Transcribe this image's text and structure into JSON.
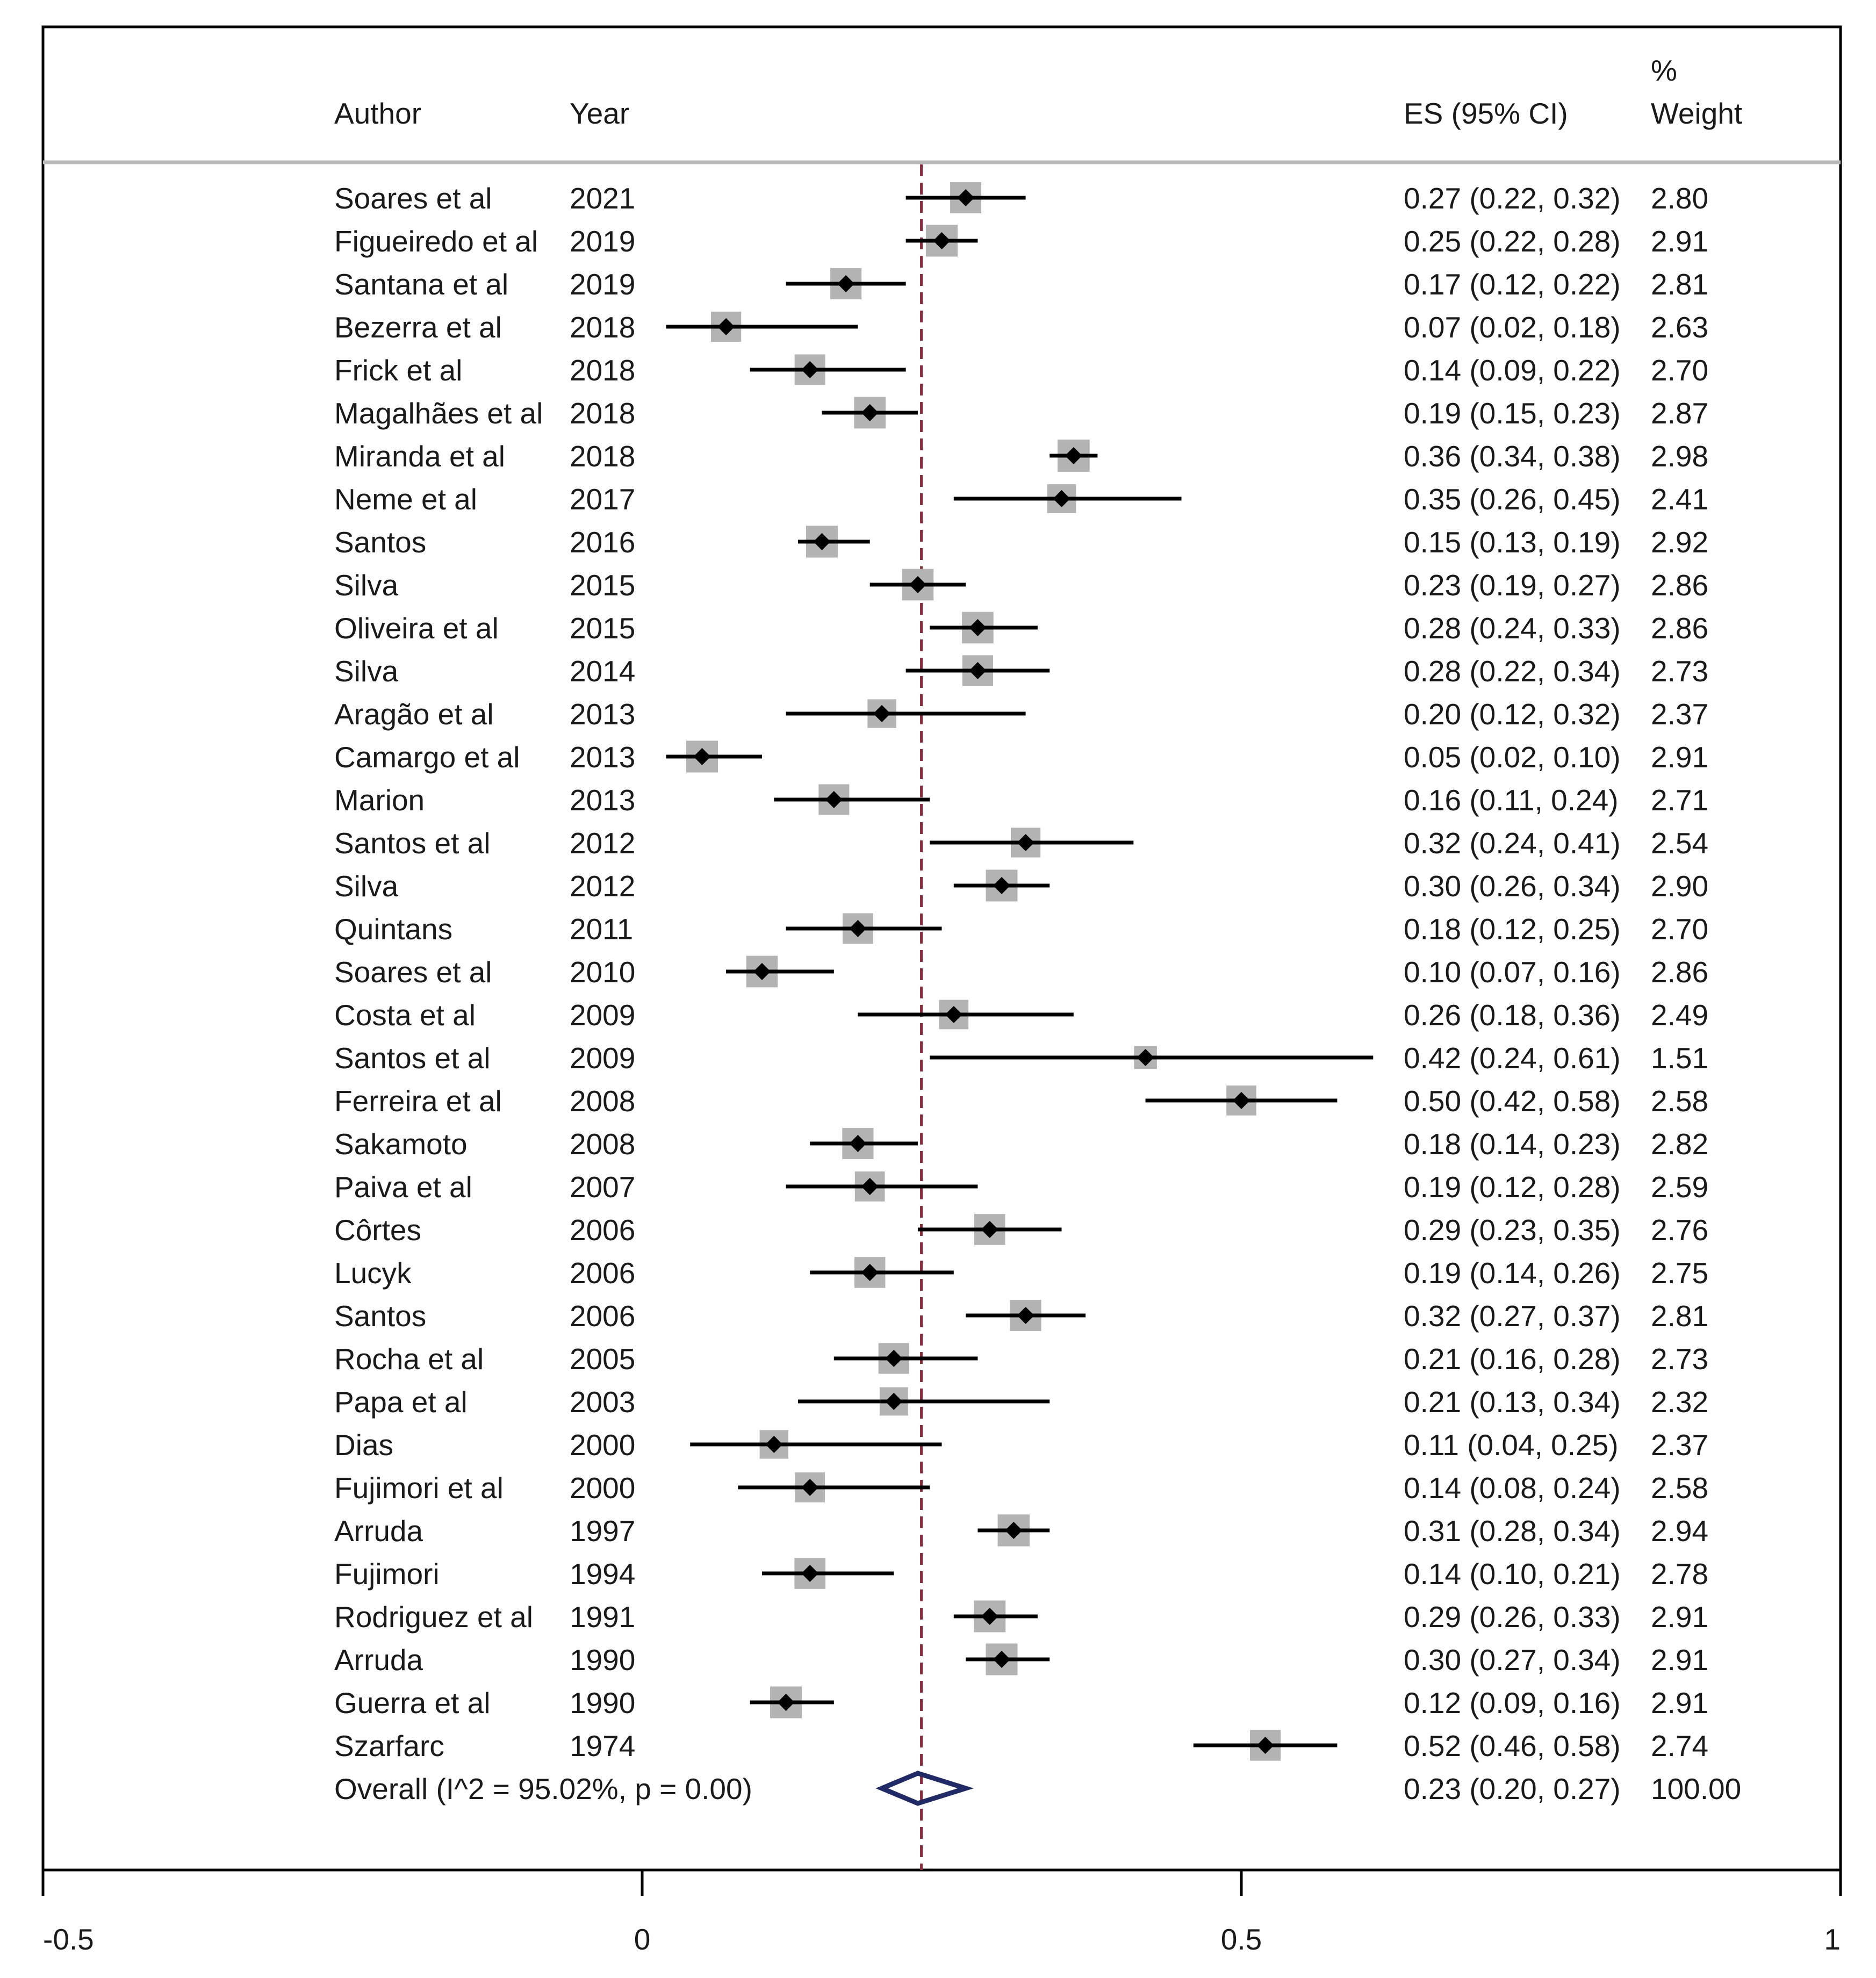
{
  "chart_data": {
    "type": "forest",
    "title": "",
    "headers": {
      "author": "Author",
      "year": "Year",
      "es": "ES (95% CI)",
      "weight_line1": "%",
      "weight_line2": "Weight"
    },
    "x_axis": {
      "xlim": [
        -0.5,
        1
      ],
      "ticks": [
        -0.5,
        0,
        0.5,
        1
      ],
      "tick_labels": [
        "-0.5",
        "0",
        "0.5",
        "1"
      ]
    },
    "reference_line": 0.233,
    "studies": [
      {
        "author": "Soares et al",
        "year": "2021",
        "es": 0.27,
        "lo": 0.22,
        "hi": 0.32,
        "weight": 2.8,
        "es_text": "0.27 (0.22, 0.32)",
        "weight_text": "2.80"
      },
      {
        "author": "Figueiredo et al",
        "year": "2019",
        "es": 0.25,
        "lo": 0.22,
        "hi": 0.28,
        "weight": 2.91,
        "es_text": "0.25 (0.22, 0.28)",
        "weight_text": "2.91"
      },
      {
        "author": "Santana et al",
        "year": "2019",
        "es": 0.17,
        "lo": 0.12,
        "hi": 0.22,
        "weight": 2.81,
        "es_text": "0.17 (0.12, 0.22)",
        "weight_text": "2.81"
      },
      {
        "author": "Bezerra et al",
        "year": "2018",
        "es": 0.07,
        "lo": 0.02,
        "hi": 0.18,
        "weight": 2.63,
        "es_text": "0.07 (0.02, 0.18)",
        "weight_text": "2.63"
      },
      {
        "author": "Frick et al",
        "year": "2018",
        "es": 0.14,
        "lo": 0.09,
        "hi": 0.22,
        "weight": 2.7,
        "es_text": "0.14 (0.09, 0.22)",
        "weight_text": "2.70"
      },
      {
        "author": "Magalhães et al",
        "year": "2018",
        "es": 0.19,
        "lo": 0.15,
        "hi": 0.23,
        "weight": 2.87,
        "es_text": "0.19 (0.15, 0.23)",
        "weight_text": "2.87"
      },
      {
        "author": "Miranda et al",
        "year": "2018",
        "es": 0.36,
        "lo": 0.34,
        "hi": 0.38,
        "weight": 2.98,
        "es_text": "0.36 (0.34, 0.38)",
        "weight_text": "2.98"
      },
      {
        "author": "Neme et al",
        "year": "2017",
        "es": 0.35,
        "lo": 0.26,
        "hi": 0.45,
        "weight": 2.41,
        "es_text": "0.35 (0.26, 0.45)",
        "weight_text": "2.41"
      },
      {
        "author": "Santos",
        "year": "2016",
        "es": 0.15,
        "lo": 0.13,
        "hi": 0.19,
        "weight": 2.92,
        "es_text": "0.15 (0.13, 0.19)",
        "weight_text": "2.92"
      },
      {
        "author": "Silva",
        "year": "2015",
        "es": 0.23,
        "lo": 0.19,
        "hi": 0.27,
        "weight": 2.86,
        "es_text": "0.23 (0.19, 0.27)",
        "weight_text": "2.86"
      },
      {
        "author": "Oliveira et al",
        "year": "2015",
        "es": 0.28,
        "lo": 0.24,
        "hi": 0.33,
        "weight": 2.86,
        "es_text": "0.28 (0.24, 0.33)",
        "weight_text": "2.86"
      },
      {
        "author": "Silva",
        "year": "2014",
        "es": 0.28,
        "lo": 0.22,
        "hi": 0.34,
        "weight": 2.73,
        "es_text": "0.28 (0.22, 0.34)",
        "weight_text": "2.73"
      },
      {
        "author": "Aragão et al",
        "year": "2013",
        "es": 0.2,
        "lo": 0.12,
        "hi": 0.32,
        "weight": 2.37,
        "es_text": "0.20 (0.12, 0.32)",
        "weight_text": "2.37"
      },
      {
        "author": "Camargo et al",
        "year": "2013",
        "es": 0.05,
        "lo": 0.02,
        "hi": 0.1,
        "weight": 2.91,
        "es_text": "0.05 (0.02, 0.10)",
        "weight_text": "2.91"
      },
      {
        "author": "Marion",
        "year": "2013",
        "es": 0.16,
        "lo": 0.11,
        "hi": 0.24,
        "weight": 2.71,
        "es_text": "0.16 (0.11, 0.24)",
        "weight_text": "2.71"
      },
      {
        "author": "Santos et al",
        "year": "2012",
        "es": 0.32,
        "lo": 0.24,
        "hi": 0.41,
        "weight": 2.54,
        "es_text": "0.32 (0.24, 0.41)",
        "weight_text": "2.54"
      },
      {
        "author": "Silva",
        "year": "2012",
        "es": 0.3,
        "lo": 0.26,
        "hi": 0.34,
        "weight": 2.9,
        "es_text": "0.30 (0.26, 0.34)",
        "weight_text": "2.90"
      },
      {
        "author": "Quintans",
        "year": "2011",
        "es": 0.18,
        "lo": 0.12,
        "hi": 0.25,
        "weight": 2.7,
        "es_text": "0.18 (0.12, 0.25)",
        "weight_text": "2.70"
      },
      {
        "author": "Soares et al",
        "year": "2010",
        "es": 0.1,
        "lo": 0.07,
        "hi": 0.16,
        "weight": 2.86,
        "es_text": "0.10 (0.07, 0.16)",
        "weight_text": "2.86"
      },
      {
        "author": "Costa et al",
        "year": "2009",
        "es": 0.26,
        "lo": 0.18,
        "hi": 0.36,
        "weight": 2.49,
        "es_text": "0.26 (0.18, 0.36)",
        "weight_text": "2.49"
      },
      {
        "author": "Santos et al",
        "year": "2009",
        "es": 0.42,
        "lo": 0.24,
        "hi": 0.61,
        "weight": 1.51,
        "es_text": "0.42 (0.24, 0.61)",
        "weight_text": "1.51"
      },
      {
        "author": "Ferreira et al",
        "year": "2008",
        "es": 0.5,
        "lo": 0.42,
        "hi": 0.58,
        "weight": 2.58,
        "es_text": "0.50 (0.42, 0.58)",
        "weight_text": "2.58"
      },
      {
        "author": "Sakamoto",
        "year": "2008",
        "es": 0.18,
        "lo": 0.14,
        "hi": 0.23,
        "weight": 2.82,
        "es_text": "0.18 (0.14, 0.23)",
        "weight_text": "2.82"
      },
      {
        "author": "Paiva et al",
        "year": "2007",
        "es": 0.19,
        "lo": 0.12,
        "hi": 0.28,
        "weight": 2.59,
        "es_text": "0.19 (0.12, 0.28)",
        "weight_text": "2.59"
      },
      {
        "author": "Côrtes",
        "year": "2006",
        "es": 0.29,
        "lo": 0.23,
        "hi": 0.35,
        "weight": 2.76,
        "es_text": "0.29 (0.23, 0.35)",
        "weight_text": "2.76"
      },
      {
        "author": "Lucyk",
        "year": "2006",
        "es": 0.19,
        "lo": 0.14,
        "hi": 0.26,
        "weight": 2.75,
        "es_text": "0.19 (0.14, 0.26)",
        "weight_text": "2.75"
      },
      {
        "author": "Santos",
        "year": "2006",
        "es": 0.32,
        "lo": 0.27,
        "hi": 0.37,
        "weight": 2.81,
        "es_text": "0.32 (0.27, 0.37)",
        "weight_text": "2.81"
      },
      {
        "author": "Rocha et al",
        "year": "2005",
        "es": 0.21,
        "lo": 0.16,
        "hi": 0.28,
        "weight": 2.73,
        "es_text": "0.21 (0.16, 0.28)",
        "weight_text": "2.73"
      },
      {
        "author": "Papa et al",
        "year": "2003",
        "es": 0.21,
        "lo": 0.13,
        "hi": 0.34,
        "weight": 2.32,
        "es_text": "0.21 (0.13, 0.34)",
        "weight_text": "2.32"
      },
      {
        "author": "Dias",
        "year": "2000",
        "es": 0.11,
        "lo": 0.04,
        "hi": 0.25,
        "weight": 2.37,
        "es_text": "0.11 (0.04, 0.25)",
        "weight_text": "2.37"
      },
      {
        "author": "Fujimori et al",
        "year": "2000",
        "es": 0.14,
        "lo": 0.08,
        "hi": 0.24,
        "weight": 2.58,
        "es_text": "0.14 (0.08, 0.24)",
        "weight_text": "2.58"
      },
      {
        "author": "Arruda",
        "year": "1997",
        "es": 0.31,
        "lo": 0.28,
        "hi": 0.34,
        "weight": 2.94,
        "es_text": "0.31 (0.28, 0.34)",
        "weight_text": "2.94"
      },
      {
        "author": "Fujimori",
        "year": "1994",
        "es": 0.14,
        "lo": 0.1,
        "hi": 0.21,
        "weight": 2.78,
        "es_text": "0.14 (0.10, 0.21)",
        "weight_text": "2.78"
      },
      {
        "author": "Rodriguez et al",
        "year": "1991",
        "es": 0.29,
        "lo": 0.26,
        "hi": 0.33,
        "weight": 2.91,
        "es_text": "0.29 (0.26, 0.33)",
        "weight_text": "2.91"
      },
      {
        "author": "Arruda",
        "year": "1990",
        "es": 0.3,
        "lo": 0.27,
        "hi": 0.34,
        "weight": 2.91,
        "es_text": "0.30 (0.27, 0.34)",
        "weight_text": "2.91"
      },
      {
        "author": "Guerra et al",
        "year": "1990",
        "es": 0.12,
        "lo": 0.09,
        "hi": 0.16,
        "weight": 2.91,
        "es_text": "0.12 (0.09, 0.16)",
        "weight_text": "2.91"
      },
      {
        "author": "Szarfarc",
        "year": "1974",
        "es": 0.52,
        "lo": 0.46,
        "hi": 0.58,
        "weight": 2.74,
        "es_text": "0.52 (0.46, 0.58)",
        "weight_text": "2.74"
      }
    ],
    "overall": {
      "label": "Overall  (I^2 = 95.02%, p = 0.00)",
      "es": 0.23,
      "lo": 0.2,
      "hi": 0.27,
      "es_text": "0.23 (0.20, 0.27)",
      "weight_text": "100.00"
    },
    "colors": {
      "line": "#000000",
      "box": "#b3b3b3",
      "point": "#000000",
      "reference": "#8b2a3c",
      "diamond": "#1f2a66",
      "frame": "#000000",
      "separator": "#b9b9b9"
    }
  }
}
